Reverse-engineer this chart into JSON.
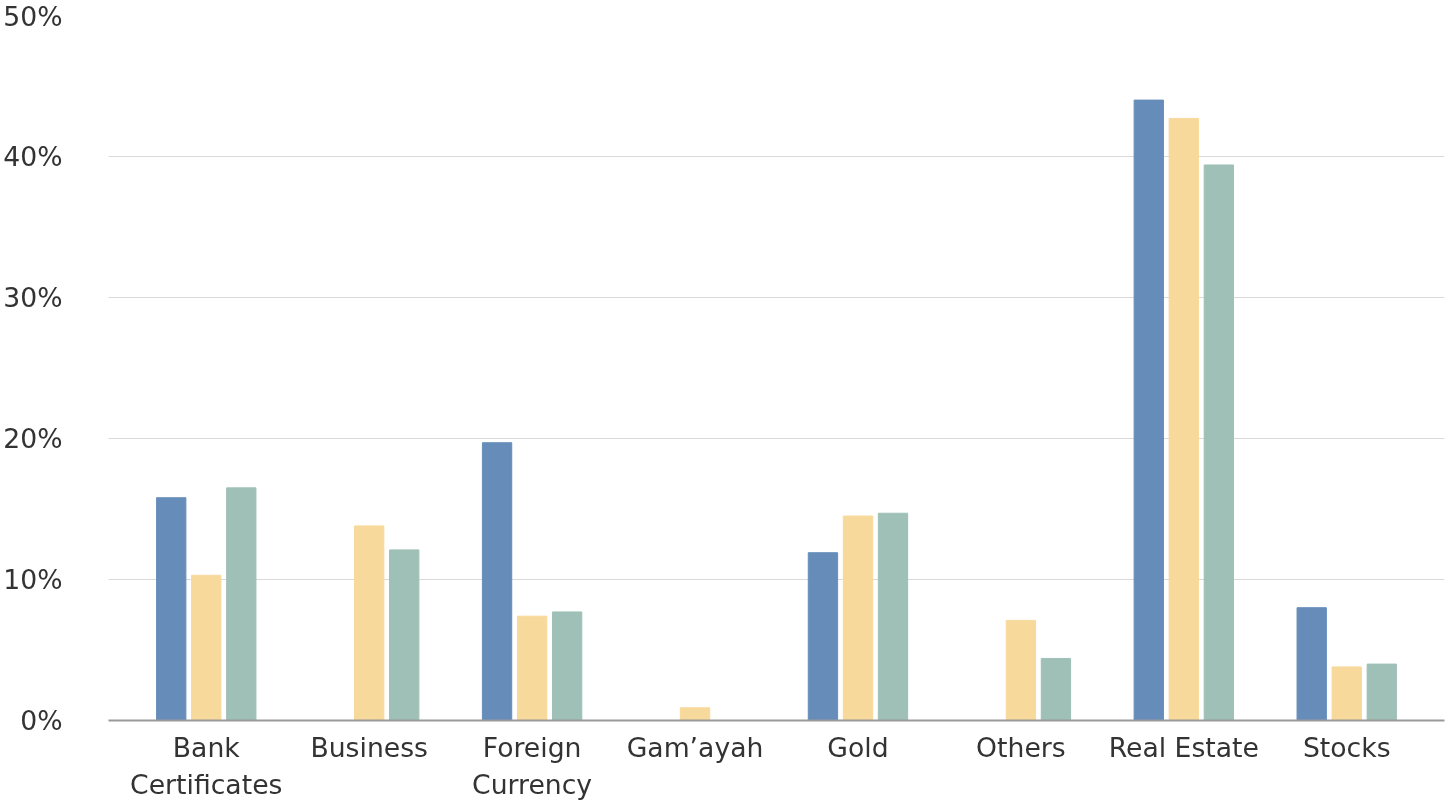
{
  "chart_data": {
    "type": "bar",
    "categories": [
      "Bank Certificates",
      "Business",
      "Foreign Currency",
      "Gam’ayah",
      "Gold",
      "Others",
      "Real Estate",
      "Stocks"
    ],
    "series": [
      {
        "color": "#668dba",
        "values": [
          15.8,
          null,
          19.7,
          null,
          11.9,
          null,
          44.0,
          8.0
        ]
      },
      {
        "color": "#f8d99c",
        "values": [
          10.3,
          13.8,
          7.4,
          0.9,
          14.5,
          7.1,
          42.7,
          3.8
        ]
      },
      {
        "color": "#9fc0b6",
        "values": [
          16.5,
          12.1,
          7.7,
          null,
          14.7,
          4.4,
          39.4,
          4.0
        ]
      }
    ],
    "ylim": [
      0,
      50
    ],
    "yticks": [
      {
        "value": 0,
        "label": "0%"
      },
      {
        "value": 10,
        "label": "10%"
      },
      {
        "value": 20,
        "label": "20%"
      },
      {
        "value": 30,
        "label": "30%"
      },
      {
        "value": 40,
        "label": "40%"
      },
      {
        "value": 50,
        "label": "50%"
      }
    ],
    "grid": "y"
  }
}
